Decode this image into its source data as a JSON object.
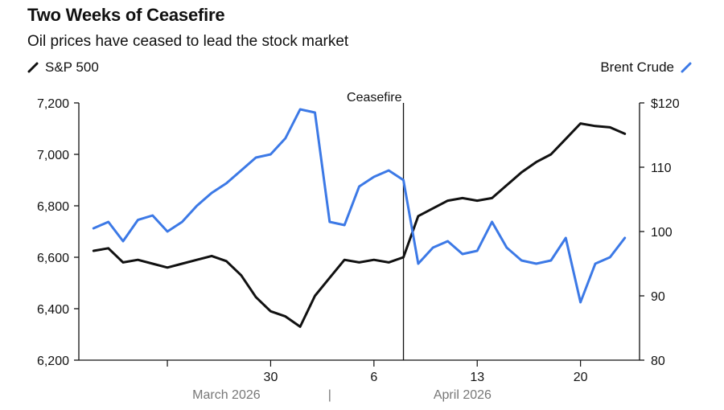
{
  "title": "Two Weeks of Ceasefire",
  "subtitle": "Oil prices have ceased to lead the stock market",
  "colors": {
    "sp500": "#111111",
    "brent": "#3c79e6",
    "axis": "#111111",
    "month": "#777777"
  },
  "chart_data": {
    "type": "line",
    "title": "Two Weeks of Ceasefire",
    "subtitle": "Oil prices have ceased to lead the stock market",
    "x_tick_labels": [
      {
        "label": "30",
        "date": "2026-03-30"
      },
      {
        "label": "6",
        "date": "2026-04-06"
      },
      {
        "label": "13",
        "date": "2026-04-13"
      },
      {
        "label": "20",
        "date": "2026-04-20"
      }
    ],
    "month_labels": [
      "March 2026",
      "|",
      "April 2026"
    ],
    "xlim": [
      "2026-03-17",
      "2026-04-24"
    ],
    "left_axis": {
      "series": "S&P 500",
      "ylim": [
        6200,
        7200
      ],
      "ticks": [
        "6,200",
        "6,400",
        "6,600",
        "6,800",
        "7,000",
        "7,200"
      ],
      "tick_values": [
        6200,
        6400,
        6600,
        6800,
        7000,
        7200
      ]
    },
    "right_axis": {
      "series": "Brent Crude",
      "ylim": [
        80,
        120
      ],
      "ticks": [
        "80",
        "90",
        "100",
        "110",
        "$120"
      ],
      "tick_values": [
        80,
        90,
        100,
        110,
        120
      ]
    },
    "annotations": [
      {
        "label": "Ceasefire",
        "date": "2026-04-08"
      }
    ],
    "series": [
      {
        "name": "S&P 500",
        "axis": "left",
        "color": "#111111",
        "points": [
          [
            "2026-03-18",
            6625
          ],
          [
            "2026-03-19",
            6635
          ],
          [
            "2026-03-20",
            6580
          ],
          [
            "2026-03-21",
            6590
          ],
          [
            "2026-03-22",
            6575
          ],
          [
            "2026-03-23",
            6560
          ],
          [
            "2026-03-24",
            6575
          ],
          [
            "2026-03-25",
            6590
          ],
          [
            "2026-03-26",
            6605
          ],
          [
            "2026-03-27",
            6585
          ],
          [
            "2026-03-28",
            6530
          ],
          [
            "2026-03-29",
            6445
          ],
          [
            "2026-03-30",
            6390
          ],
          [
            "2026-03-31",
            6370
          ],
          [
            "2026-04-01",
            6330
          ],
          [
            "2026-04-02",
            6450
          ],
          [
            "2026-04-03",
            6520
          ],
          [
            "2026-04-04",
            6590
          ],
          [
            "2026-04-05",
            6580
          ],
          [
            "2026-04-06",
            6590
          ],
          [
            "2026-04-07",
            6580
          ],
          [
            "2026-04-08",
            6600
          ],
          [
            "2026-04-09",
            6760
          ],
          [
            "2026-04-10",
            6790
          ],
          [
            "2026-04-11",
            6820
          ],
          [
            "2026-04-12",
            6830
          ],
          [
            "2026-04-13",
            6820
          ],
          [
            "2026-04-14",
            6830
          ],
          [
            "2026-04-15",
            6880
          ],
          [
            "2026-04-16",
            6930
          ],
          [
            "2026-04-17",
            6970
          ],
          [
            "2026-04-18",
            7000
          ],
          [
            "2026-04-19",
            7060
          ],
          [
            "2026-04-20",
            7120
          ],
          [
            "2026-04-21",
            7110
          ],
          [
            "2026-04-22",
            7105
          ],
          [
            "2026-04-23",
            7080
          ]
        ]
      },
      {
        "name": "Brent Crude",
        "axis": "right",
        "color": "#3c79e6",
        "points": [
          [
            "2026-03-18",
            100.5
          ],
          [
            "2026-03-19",
            101.5
          ],
          [
            "2026-03-20",
            98.5
          ],
          [
            "2026-03-21",
            101.8
          ],
          [
            "2026-03-22",
            102.5
          ],
          [
            "2026-03-23",
            100.0
          ],
          [
            "2026-03-24",
            101.5
          ],
          [
            "2026-03-25",
            104.0
          ],
          [
            "2026-03-26",
            106.0
          ],
          [
            "2026-03-27",
            107.5
          ],
          [
            "2026-03-28",
            109.5
          ],
          [
            "2026-03-29",
            111.5
          ],
          [
            "2026-03-30",
            112.0
          ],
          [
            "2026-03-31",
            114.5
          ],
          [
            "2026-04-01",
            119.0
          ],
          [
            "2026-04-02",
            118.5
          ],
          [
            "2026-04-03",
            101.5
          ],
          [
            "2026-04-04",
            101.0
          ],
          [
            "2026-04-05",
            107.0
          ],
          [
            "2026-04-06",
            108.5
          ],
          [
            "2026-04-07",
            109.5
          ],
          [
            "2026-04-08",
            108.0
          ],
          [
            "2026-04-09",
            95.0
          ],
          [
            "2026-04-10",
            97.5
          ],
          [
            "2026-04-11",
            98.5
          ],
          [
            "2026-04-12",
            96.5
          ],
          [
            "2026-04-13",
            97.0
          ],
          [
            "2026-04-14",
            101.5
          ],
          [
            "2026-04-15",
            97.5
          ],
          [
            "2026-04-16",
            95.5
          ],
          [
            "2026-04-17",
            95.0
          ],
          [
            "2026-04-18",
            95.5
          ],
          [
            "2026-04-19",
            99.0
          ],
          [
            "2026-04-20",
            89.0
          ],
          [
            "2026-04-21",
            95.0
          ],
          [
            "2026-04-22",
            96.0
          ],
          [
            "2026-04-23",
            99.0
          ]
        ]
      }
    ]
  }
}
